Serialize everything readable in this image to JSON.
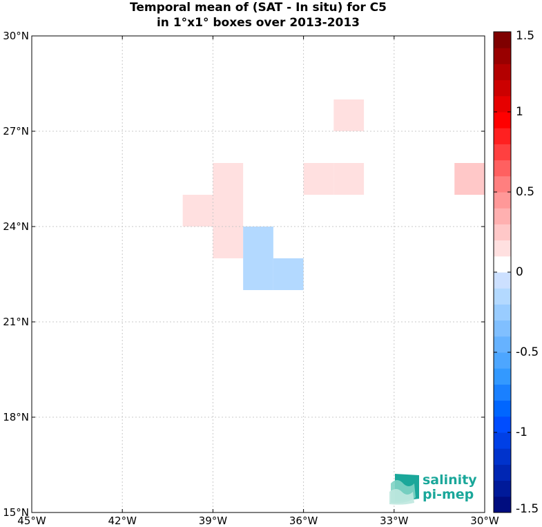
{
  "title_line1": "Temporal mean of (SAT - In situ) for C5",
  "title_line2": "in 1°x1° boxes over 2013-2013",
  "logo": {
    "line1": "salinity",
    "line2": "pi-mep",
    "color": "#1aa79a"
  },
  "chart_data": {
    "type": "heatmap",
    "title": "Temporal mean of (SAT - In situ) for C5 in 1°x1° boxes over 2013-2013",
    "lon_range": [
      -45,
      -30
    ],
    "lat_range": [
      15,
      30
    ],
    "x_ticks": [
      -45,
      -42,
      -39,
      -36,
      -33,
      -30
    ],
    "x_tick_labels": [
      "45°W",
      "42°W",
      "39°W",
      "36°W",
      "33°W",
      "30°W"
    ],
    "y_ticks": [
      15,
      18,
      21,
      24,
      27,
      30
    ],
    "y_tick_labels": [
      "15°N",
      "18°N",
      "21°N",
      "24°N",
      "27°N",
      "30°N"
    ],
    "grid": true,
    "colorbar": {
      "range": [
        -1.5,
        1.5
      ],
      "step": 0.1,
      "ticks": [
        -1.5,
        -1,
        -0.5,
        0,
        0.5,
        1,
        1.5
      ],
      "tick_labels": [
        "-1.5",
        "-1",
        "-0.5",
        "0",
        "0.5",
        "1",
        "1.5"
      ],
      "colors": [
        "#000d7f",
        "#001a99",
        "#0026b3",
        "#0033cc",
        "#0040e6",
        "#004dff",
        "#0066ff",
        "#1a80ff",
        "#3399ff",
        "#4da6ff",
        "#66b2ff",
        "#80bfff",
        "#99ccff",
        "#b3d9ff",
        "#cce0ff",
        "#ffffff",
        "#ffe0e0",
        "#ffc8c8",
        "#ffb0b0",
        "#ff9898",
        "#ff7f7f",
        "#ff6060",
        "#ff4040",
        "#ff2020",
        "#ff0000",
        "#e60000",
        "#cc0000",
        "#b30000",
        "#990000",
        "#7f0000"
      ]
    },
    "cells": [
      {
        "lon": -35,
        "lat": 27,
        "value": 0.15
      },
      {
        "lon": -39,
        "lat": 25,
        "value": 0.15
      },
      {
        "lon": -36,
        "lat": 25,
        "value": 0.15
      },
      {
        "lon": -35,
        "lat": 25,
        "value": 0.15
      },
      {
        "lon": -31,
        "lat": 25,
        "value": 0.25
      },
      {
        "lon": -40,
        "lat": 24,
        "value": 0.15
      },
      {
        "lon": -39,
        "lat": 24,
        "value": 0.15
      },
      {
        "lon": -39,
        "lat": 23,
        "value": 0.15
      },
      {
        "lon": -38,
        "lat": 23,
        "value": -0.15
      },
      {
        "lon": -38,
        "lat": 22,
        "value": -0.15
      },
      {
        "lon": -37,
        "lat": 22,
        "value": -0.15
      }
    ]
  }
}
